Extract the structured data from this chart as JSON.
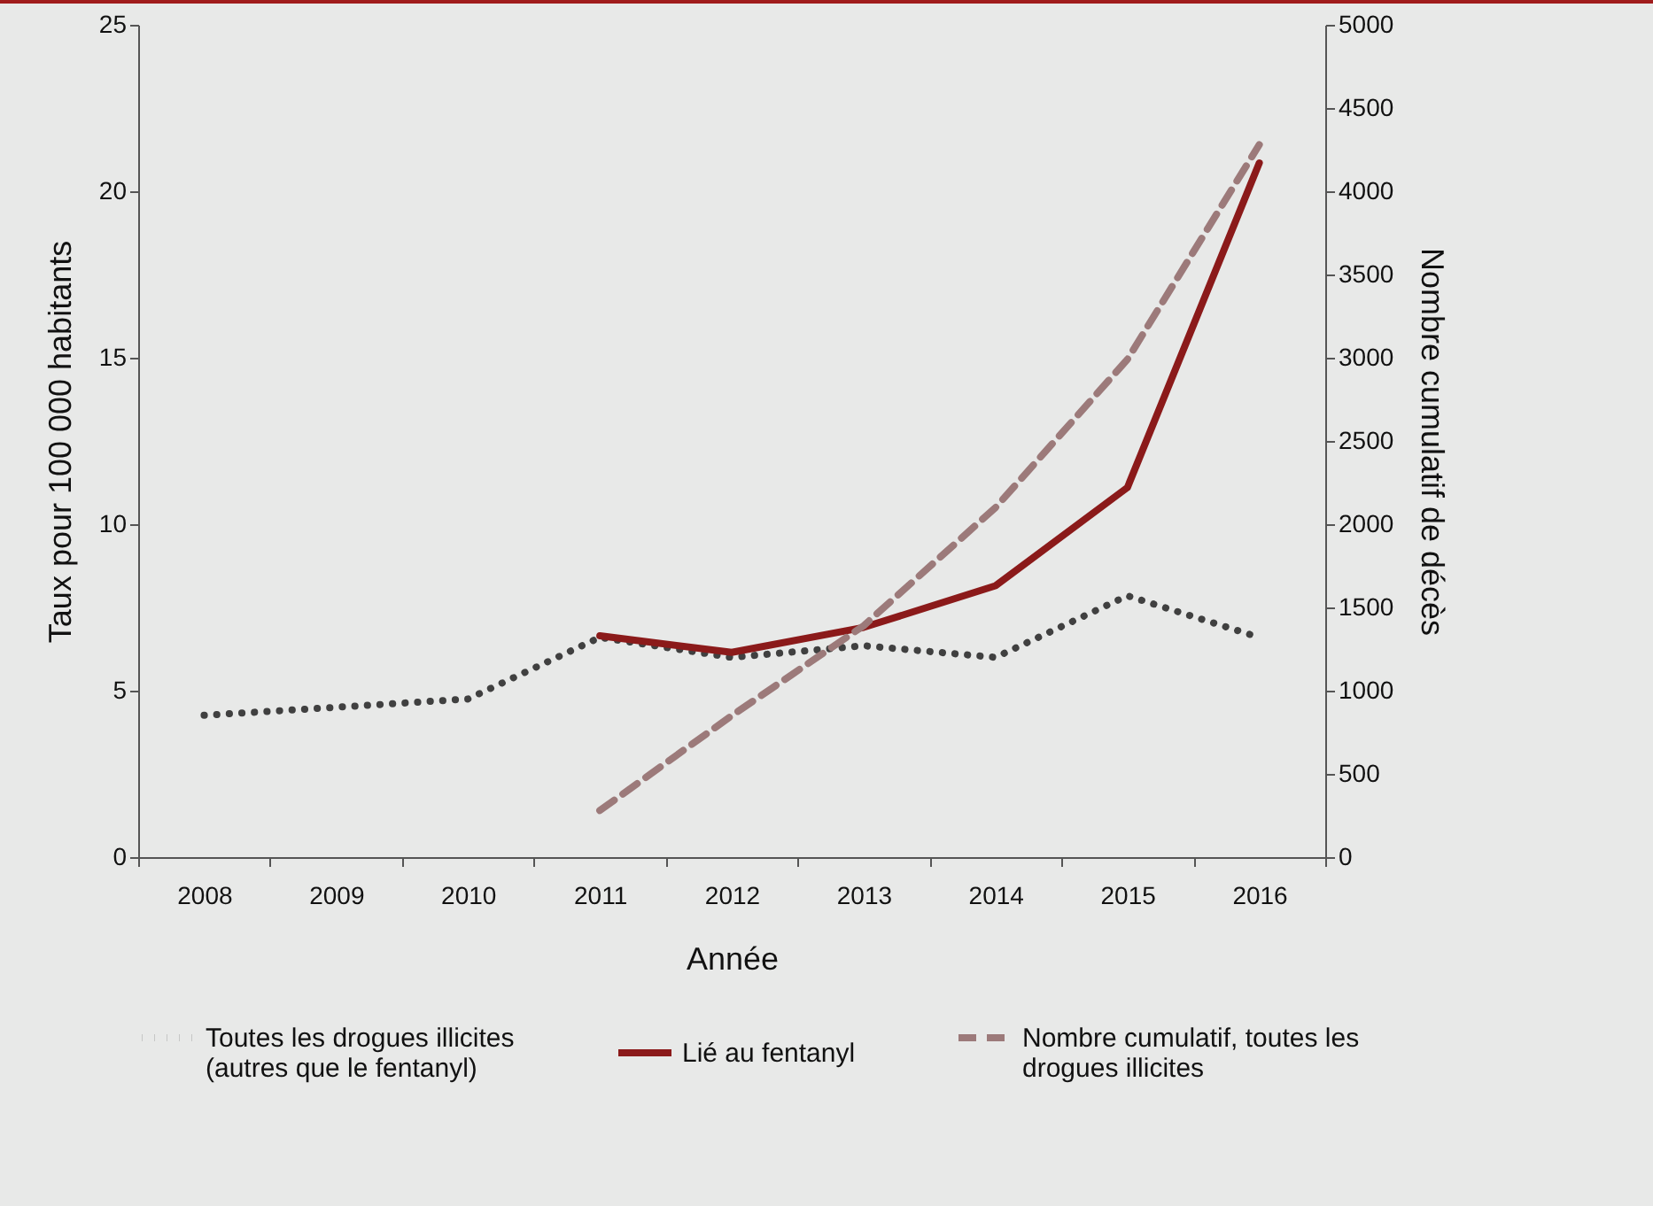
{
  "chart_data": {
    "type": "line",
    "xlabel": "Année",
    "ylabel": "Taux pour 100 000 habitants",
    "y2label": "Nombre cumulatif de décès",
    "categories": [
      "2008",
      "2009",
      "2010",
      "2011",
      "2012",
      "2013",
      "2014",
      "2015",
      "2016"
    ],
    "ylim": [
      0,
      25
    ],
    "yticks": [
      0,
      5,
      10,
      15,
      20,
      25
    ],
    "y2lim": [
      0,
      5000
    ],
    "y2ticks": [
      0,
      500,
      1000,
      1500,
      2000,
      2500,
      3000,
      3500,
      4000,
      4500,
      5000
    ],
    "grid": false,
    "legend": "bottom",
    "marker": "none",
    "series": [
      {
        "name": "Toutes les drogues illicites (autres que le fentanyl)",
        "color": "#404040",
        "line_style": "dotted",
        "values": [
          4.26,
          4.5,
          4.75,
          6.6,
          6.0,
          6.35,
          6.0,
          7.85,
          6.6
        ]
      },
      {
        "name": "Lié au fentanyl",
        "color": "#8b1a1a",
        "line_style": "solid",
        "values": [
          null,
          null,
          null,
          6.65,
          6.15,
          6.9,
          8.15,
          11.1,
          20.85
        ]
      },
      {
        "name": "Nombre cumulatif, toutes les drogues illicites",
        "color": "#9c7a7a",
        "line_style": "dashed",
        "axis": "y2",
        "values": [
          null,
          null,
          null,
          280,
          850,
          1390,
          2100,
          2990,
          4280
        ]
      }
    ]
  }
}
